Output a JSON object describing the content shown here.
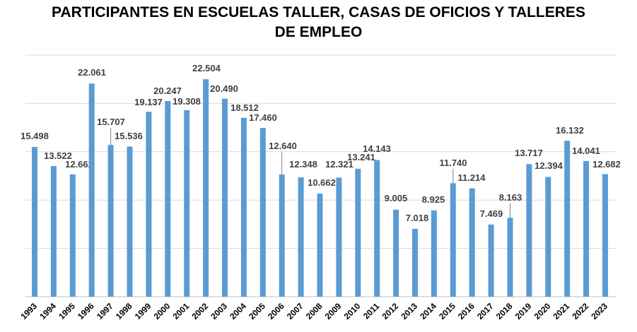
{
  "chart_data": {
    "type": "bar",
    "title_line1": "PARTICIPANTES EN ESCUELAS TALLER, CASAS DE OFICIOS Y TALLERES",
    "title_line2": "DE EMPLEO",
    "xlabel": "",
    "ylabel": "",
    "ylim": [
      0,
      25000
    ],
    "grid": true,
    "grid_step": 5000,
    "bar_color": "#5B9BD5",
    "categories": [
      "1993",
      "1994",
      "1995",
      "1996",
      "1997",
      "1998",
      "1999",
      "2000",
      "2001",
      "2002",
      "2003",
      "2004",
      "2005",
      "2006",
      "2007",
      "2008",
      "2009",
      "2010",
      "2011",
      "2012",
      "2013",
      "2014",
      "2015",
      "2016",
      "2017",
      "2018",
      "2019",
      "2020",
      "2021",
      "2022",
      "2023"
    ],
    "values": [
      15498,
      13522,
      12662,
      22061,
      15707,
      15536,
      19137,
      20247,
      19308,
      22504,
      20490,
      18512,
      17460,
      12640,
      12348,
      10662,
      12321,
      13241,
      14143,
      9005,
      7018,
      8925,
      11740,
      11214,
      7469,
      8163,
      13717,
      12394,
      16132,
      14041,
      12682
    ],
    "data_labels": [
      "15.498",
      "13.522",
      "12.662",
      "22.061",
      "15.707",
      "15.536",
      "19.137",
      "20.247",
      "19.308",
      "22.504",
      "20.490",
      "18.512",
      "17.460",
      "12.640",
      "12.348",
      "10.662",
      "12.321",
      "13.241",
      "14.143",
      "9.005",
      "7.018",
      "8.925",
      "11.740",
      "11.214",
      "7.469",
      "8.163",
      "13.717",
      "12.394",
      "16.132",
      "14.041",
      "12.682"
    ]
  }
}
